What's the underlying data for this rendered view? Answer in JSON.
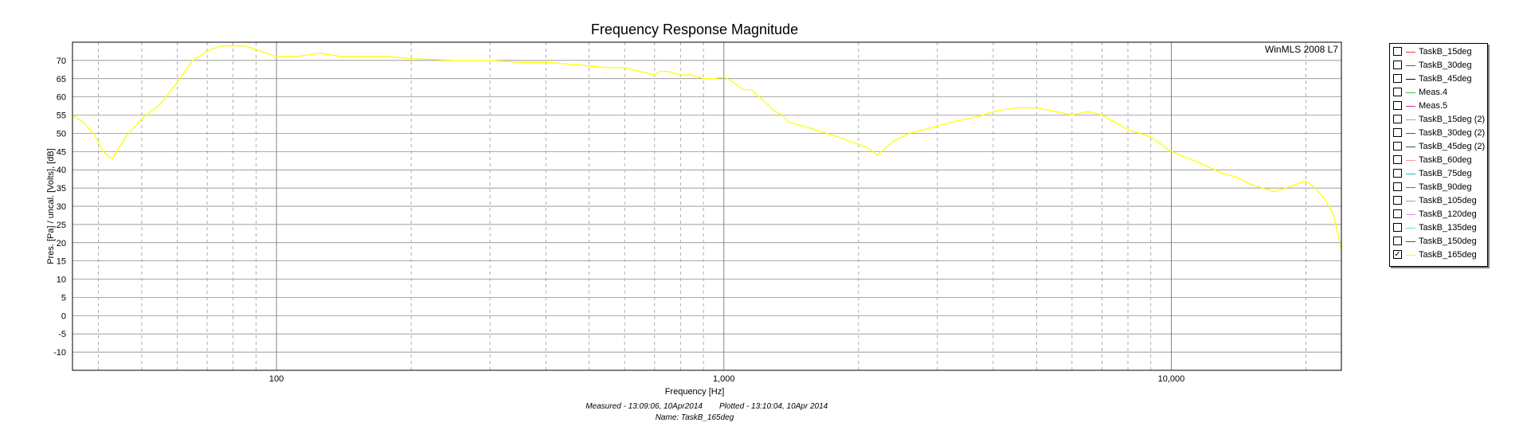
{
  "chart_data": {
    "type": "line",
    "title": "Frequency Response Magnitude",
    "watermark": "WinMLS 2008 L7",
    "xlabel": "Frequency [Hz]",
    "ylabel": "Pres. [Pa] / uncal. [Volts], [dB]",
    "x_scale": "log",
    "xlim": [
      35,
      24000
    ],
    "ylim": [
      -15,
      75
    ],
    "x_tick_labels": [
      {
        "value": 100,
        "label": "100"
      },
      {
        "value": 1000,
        "label": "1,000"
      },
      {
        "value": 10000,
        "label": "10,000"
      }
    ],
    "y_ticks": [
      70,
      65,
      60,
      55,
      50,
      45,
      40,
      35,
      30,
      25,
      20,
      15,
      10,
      5,
      0,
      -5,
      -10
    ],
    "grid": true,
    "legend_position": "right",
    "footer": {
      "line1_measured": "Measured - 13:09:06, 10Apr2014",
      "line1_plotted": "Plotted - 13:10:04, 10Apr 2014",
      "line2": "Name: TaskB_165deg"
    },
    "legend": [
      {
        "name": "TaskB_15deg",
        "color": "#ff3333",
        "checked": false
      },
      {
        "name": "TaskB_30deg",
        "color": "#3355ff",
        "checked": false
      },
      {
        "name": "TaskB_45deg",
        "color": "#000000",
        "checked": false
      },
      {
        "name": "Meas.4",
        "color": "#33cc33",
        "checked": false
      },
      {
        "name": "Meas.5",
        "color": "#cc3399",
        "checked": false
      },
      {
        "name": "TaskB_15deg (2)",
        "color": "#9999ff",
        "checked": false
      },
      {
        "name": "TaskB_30deg (2)",
        "color": "#336677",
        "checked": false
      },
      {
        "name": "TaskB_45deg (2)",
        "color": "#226622",
        "checked": false
      },
      {
        "name": "TaskB_60deg",
        "color": "#ff99aa",
        "checked": false
      },
      {
        "name": "TaskB_75deg",
        "color": "#33aacc",
        "checked": false
      },
      {
        "name": "TaskB_90deg",
        "color": "#996633",
        "checked": false
      },
      {
        "name": "TaskB_105deg",
        "color": "#66cc66",
        "checked": false
      },
      {
        "name": "TaskB_120deg",
        "color": "#ee88ee",
        "checked": false
      },
      {
        "name": "TaskB_135deg",
        "color": "#66dddd",
        "checked": false
      },
      {
        "name": "TaskB_150deg",
        "color": "#993333",
        "checked": false
      },
      {
        "name": "TaskB_165deg",
        "color": "#ffff00",
        "checked": true
      }
    ],
    "series": [
      {
        "name": "TaskB_165deg",
        "color": "#ffff00",
        "x": [
          35,
          37,
          39,
          41,
          43,
          46,
          50,
          55,
          60,
          65,
          70,
          75,
          80,
          85,
          90,
          95,
          100,
          110,
          125,
          140,
          160,
          180,
          200,
          250,
          300,
          350,
          400,
          450,
          500,
          550,
          600,
          650,
          700,
          720,
          750,
          800,
          850,
          900,
          950,
          1000,
          1050,
          1100,
          1150,
          1200,
          1250,
          1300,
          1350,
          1400,
          1500,
          1600,
          1700,
          1800,
          1900,
          2000,
          2100,
          2200,
          2300,
          2400,
          2500,
          2600,
          2800,
          3000,
          3200,
          3500,
          3800,
          4000,
          4500,
          5000,
          5500,
          6000,
          6500,
          7000,
          7500,
          8000,
          8500,
          9000,
          9500,
          10000,
          11000,
          12000,
          13000,
          14000,
          15000,
          16000,
          17000,
          18000,
          19000,
          20000,
          21000,
          22000,
          23000,
          24000
        ],
        "y": [
          55,
          53,
          50,
          45,
          43,
          49,
          54,
          58,
          64,
          70,
          72.5,
          74,
          74,
          74,
          73,
          72,
          71,
          71,
          72,
          71,
          71,
          71,
          70.5,
          70,
          70,
          69.5,
          69.5,
          69,
          68.5,
          68,
          68,
          67,
          66,
          67,
          67,
          66,
          66,
          65,
          65,
          65.5,
          64,
          62,
          62,
          60,
          58,
          56,
          55,
          53,
          52,
          51,
          50,
          49,
          48,
          47,
          46,
          44,
          46,
          48,
          49,
          50,
          51,
          52,
          53,
          54,
          55,
          56,
          57,
          57,
          56,
          55,
          56,
          55,
          53,
          51,
          50,
          49,
          47,
          45,
          43,
          41,
          39,
          38,
          36,
          35,
          34,
          35,
          36,
          37,
          35,
          32,
          28,
          18
        ]
      }
    ]
  }
}
